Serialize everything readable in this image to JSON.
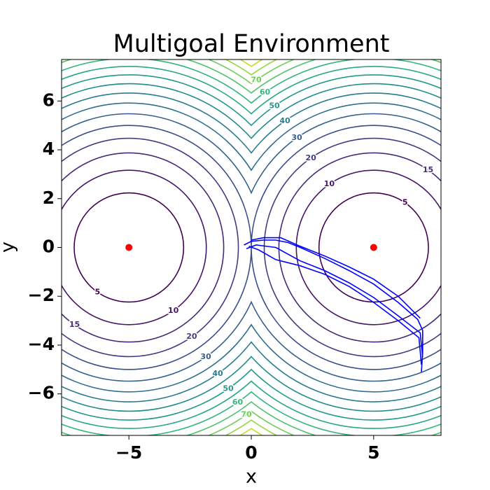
{
  "chart_data": {
    "type": "contour",
    "title": "Multigoal Environment",
    "xlabel": "x",
    "ylabel": "y",
    "xlim": [
      -7.75,
      7.75
    ],
    "ylim": [
      -7.7,
      7.7
    ],
    "xticks": [
      {
        "value": -5,
        "label": "−5"
      },
      0,
      5
    ],
    "yticks": [
      {
        "value": -6,
        "label": "−6"
      },
      {
        "value": -4,
        "label": "−4"
      },
      {
        "value": -2,
        "label": "−2"
      },
      0,
      2,
      4,
      6
    ],
    "colormap": "viridis",
    "levels": [
      5,
      10,
      15,
      20,
      25,
      30,
      35,
      40,
      45,
      50,
      55,
      60,
      65,
      70,
      75,
      80
    ],
    "goals": {
      "color": "#ff0000",
      "x": [
        -5,
        5
      ],
      "y": [
        0,
        0
      ]
    },
    "series": [
      {
        "color": "#0000ff",
        "x": [
          -0.3,
          0,
          0.5,
          1,
          1.5,
          2,
          3,
          4,
          5,
          6,
          6.8,
          7,
          7,
          6.95
        ],
        "y": [
          0.1,
          0.25,
          0.3,
          0.3,
          0.2,
          0,
          -0.45,
          -0.95,
          -1.5,
          -2.25,
          -2.95,
          -3.4,
          -4.3,
          -5.1
        ]
      },
      {
        "color": "#0000ff",
        "x": [
          -0.2,
          0.2,
          1,
          2,
          3,
          4,
          5,
          6,
          6.9,
          7
        ],
        "y": [
          -0.05,
          0.1,
          0,
          -0.55,
          -0.95,
          -1.45,
          -2.05,
          -2.8,
          -3.5,
          -4.5
        ]
      },
      {
        "color": "#0000ff",
        "x": [
          0,
          0.5,
          1.2,
          2,
          3,
          4,
          5,
          6,
          6.9
        ],
        "y": [
          0.3,
          0.4,
          0.4,
          0.05,
          -0.35,
          -0.8,
          -1.3,
          -2.0,
          -2.9
        ]
      },
      {
        "color": "#0000ff",
        "x": [
          -0.1,
          0.3,
          1,
          2,
          3,
          4,
          5,
          6,
          6.85,
          6.95
        ],
        "y": [
          0.05,
          -0.1,
          -0.5,
          -0.75,
          -1.1,
          -1.6,
          -2.25,
          -3.0,
          -3.7,
          -4.8
        ]
      }
    ]
  }
}
